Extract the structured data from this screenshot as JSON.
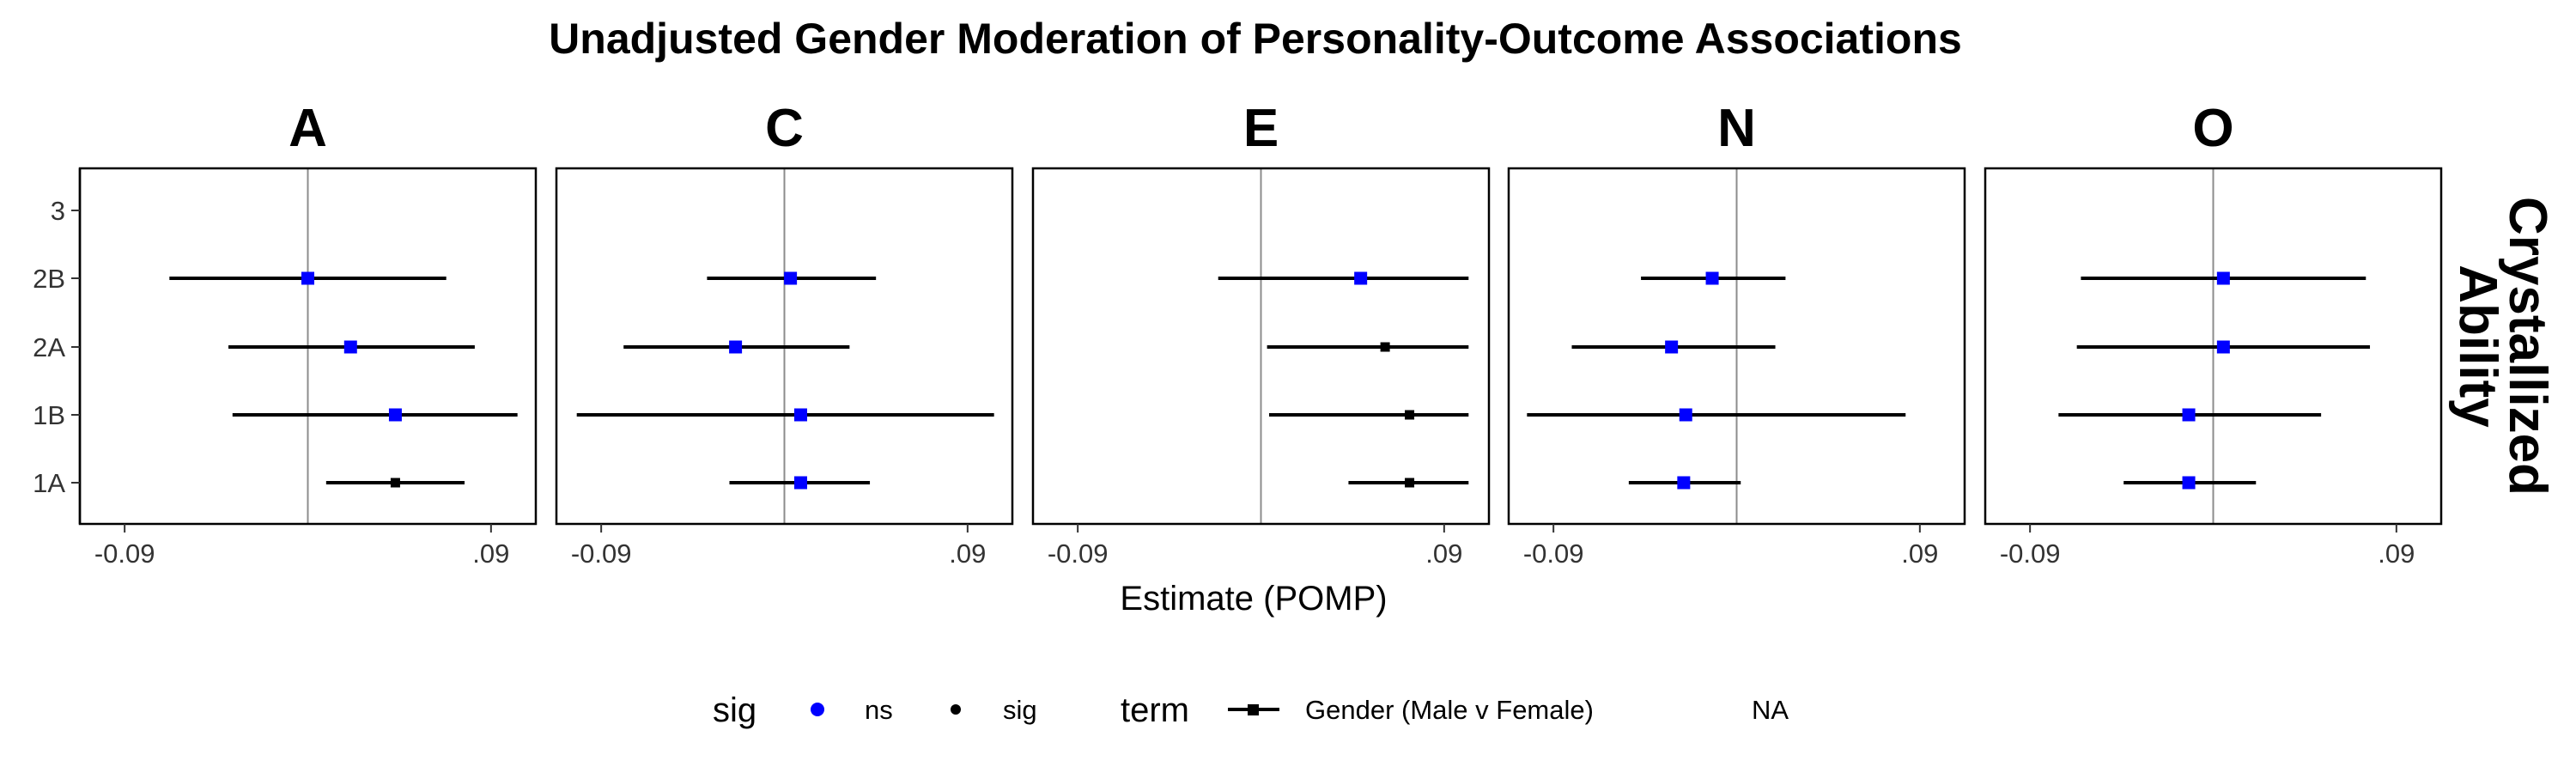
{
  "chart_data": {
    "type": "forest",
    "title": "Unadjusted Gender Moderation of Personality-Outcome Associations",
    "xlabel": "Estimate (POMP)",
    "row_facet_label": "Crystallized Ability",
    "y_categories": [
      "3",
      "2B",
      "2A",
      "1B",
      "1A"
    ],
    "x_ticks": [
      {
        "value": -0.09,
        "label": "-0.09"
      },
      {
        "value": 0.09,
        "label": ".09"
      }
    ],
    "xlim": [
      -0.112,
      0.112
    ],
    "reference_line": 0,
    "colors": {
      "ns": "#0000ff",
      "sig": "#000000",
      "ref_line": "#8c8c8c"
    },
    "panels": [
      {
        "name": "A",
        "points": [
          {
            "y": "2B",
            "est": 0.0,
            "lo": -0.068,
            "hi": 0.068,
            "sig": "ns"
          },
          {
            "y": "2A",
            "est": 0.021,
            "lo": -0.039,
            "hi": 0.082,
            "sig": "ns"
          },
          {
            "y": "1B",
            "est": 0.043,
            "lo": -0.037,
            "hi": 0.103,
            "sig": "ns"
          },
          {
            "y": "1A",
            "est": 0.043,
            "lo": 0.009,
            "hi": 0.077,
            "sig": "sig"
          }
        ]
      },
      {
        "name": "C",
        "points": [
          {
            "y": "2B",
            "est": 0.003,
            "lo": -0.038,
            "hi": 0.045,
            "sig": "ns"
          },
          {
            "y": "2A",
            "est": -0.024,
            "lo": -0.079,
            "hi": 0.032,
            "sig": "ns"
          },
          {
            "y": "1B",
            "est": 0.008,
            "lo": -0.102,
            "hi": 0.103,
            "sig": "ns"
          },
          {
            "y": "1A",
            "est": 0.008,
            "lo": -0.027,
            "hi": 0.042,
            "sig": "ns"
          }
        ]
      },
      {
        "name": "E",
        "points": [
          {
            "y": "2B",
            "est": 0.049,
            "lo": -0.021,
            "hi": 0.102,
            "sig": "ns"
          },
          {
            "y": "2A",
            "est": 0.061,
            "lo": 0.003,
            "hi": 0.102,
            "sig": "sig"
          },
          {
            "y": "1B",
            "est": 0.073,
            "lo": 0.004,
            "hi": 0.102,
            "sig": "sig"
          },
          {
            "y": "1A",
            "est": 0.073,
            "lo": 0.043,
            "hi": 0.102,
            "sig": "sig"
          }
        ]
      },
      {
        "name": "N",
        "points": [
          {
            "y": "2B",
            "est": -0.012,
            "lo": -0.047,
            "hi": 0.024,
            "sig": "ns"
          },
          {
            "y": "2A",
            "est": -0.032,
            "lo": -0.081,
            "hi": 0.019,
            "sig": "ns"
          },
          {
            "y": "1B",
            "est": -0.025,
            "lo": -0.103,
            "hi": 0.083,
            "sig": "ns"
          },
          {
            "y": "1A",
            "est": -0.026,
            "lo": -0.053,
            "hi": 0.002,
            "sig": "ns"
          }
        ]
      },
      {
        "name": "O",
        "points": [
          {
            "y": "2B",
            "est": 0.005,
            "lo": -0.065,
            "hi": 0.075,
            "sig": "ns"
          },
          {
            "y": "2A",
            "est": 0.005,
            "lo": -0.067,
            "hi": 0.077,
            "sig": "ns"
          },
          {
            "y": "1B",
            "est": -0.012,
            "lo": -0.076,
            "hi": 0.053,
            "sig": "ns"
          },
          {
            "y": "1A",
            "est": -0.012,
            "lo": -0.044,
            "hi": 0.021,
            "sig": "ns"
          }
        ]
      }
    ],
    "legend": {
      "position": "bottom",
      "sig_title": "sig",
      "sig_items": [
        {
          "key": "ns",
          "label": "ns"
        },
        {
          "key": "sig",
          "label": "sig"
        }
      ],
      "term_title": "term",
      "term_items": [
        {
          "label": "Gender (Male v Female)"
        },
        {
          "label": "NA"
        }
      ]
    }
  }
}
